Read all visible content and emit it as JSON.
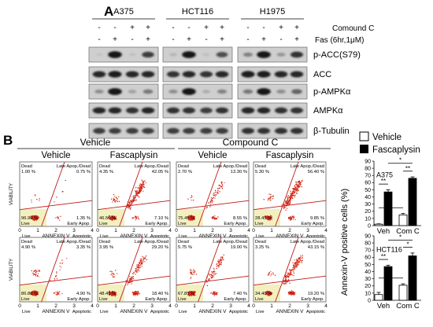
{
  "panelA": {
    "letter": "A",
    "cell_lines": [
      "A375",
      "HCT116",
      "H1975"
    ],
    "treatment_labels": [
      "Comound C",
      "Fas (6hr,1μM)"
    ],
    "compound_c_signs": [
      "-",
      "-",
      "+",
      "+"
    ],
    "fas_signs": [
      "-",
      "+",
      "-",
      "+"
    ],
    "proteins": [
      "p-ACC(S79)",
      "ACC",
      "p-AMPKα",
      "AMPKα",
      "β-Tubulin"
    ],
    "band_intensity": [
      [
        [
          0.08,
          0.95,
          0.1,
          0.75
        ],
        [
          0.15,
          0.95,
          0.1,
          0.65
        ],
        [
          0.4,
          0.95,
          0.3,
          0.8
        ]
      ],
      [
        [
          0.85,
          0.9,
          0.85,
          0.85
        ],
        [
          0.8,
          0.85,
          0.8,
          0.85
        ],
        [
          0.9,
          0.9,
          0.85,
          0.85
        ]
      ],
      [
        [
          0.35,
          0.95,
          0.25,
          0.45
        ],
        [
          0.35,
          0.95,
          0.2,
          0.4
        ],
        [
          0.45,
          0.95,
          0.35,
          0.55
        ]
      ],
      [
        [
          0.85,
          0.85,
          0.8,
          0.85
        ],
        [
          0.8,
          0.8,
          0.75,
          0.8
        ],
        [
          0.85,
          0.85,
          0.8,
          0.8
        ]
      ],
      [
        [
          0.75,
          0.75,
          0.75,
          0.75
        ],
        [
          0.75,
          0.75,
          0.75,
          0.75
        ],
        [
          0.8,
          0.8,
          0.8,
          0.8
        ]
      ]
    ]
  },
  "panelB": {
    "letter": "B",
    "group_titles": [
      "Vehicle",
      "Compound C"
    ],
    "column_titles": [
      "Vehicle",
      "Fascaplysin",
      "Vehicle",
      "Fascaplysin"
    ],
    "quad_labels": {
      "dead": "Dead",
      "late": "Late Apop./Dead",
      "live": "Live",
      "early": "Early Apop."
    },
    "axis": {
      "x_label": "ANNEXIN V",
      "y_label": "VIABILITY",
      "x_ticks": [
        "0",
        "1",
        "2",
        "3",
        "4"
      ],
      "x_sub_left": "Live",
      "x_sub_right": "Apoptotic"
    },
    "plots": [
      {
        "dead": "1.00 %",
        "late": "0.75 %",
        "live": "96.90 %",
        "early": "1.35 %"
      },
      {
        "dead": "4.35 %",
        "late": "42.05 %",
        "live": "46.50 %",
        "early": "7.10 %"
      },
      {
        "dead": "2.70 %",
        "late": "13.30 %",
        "live": "75.45 %",
        "early": "8.55 %"
      },
      {
        "dead": "5.30 %",
        "late": "56.40 %",
        "live": "28.45 %",
        "early": "9.85 %"
      },
      {
        "dead": "4.90 %",
        "late": "3.35 %",
        "live": "86.80 %",
        "early": "4.90 %"
      },
      {
        "dead": "3.95 %",
        "late": "29.20 %",
        "live": "48.45 %",
        "early": "18.40 %"
      },
      {
        "dead": "5.75 %",
        "late": "19.00 %",
        "live": "67.85 %",
        "early": "7.40 %"
      },
      {
        "dead": "3.25 %",
        "late": "43.15 %",
        "live": "34.40 %",
        "early": "19.20 %"
      }
    ]
  },
  "legend": {
    "vehicle": "Vehicle",
    "fascaplysin": "Fascaplysin",
    "vehicle_color": "#ffffff",
    "fascaplysin_color": "#000000"
  },
  "chart_data": [
    {
      "type": "bar",
      "title": "A375",
      "ylabel": "Annexin-V positive cells (%)",
      "ylim": [
        0,
        90
      ],
      "yticks": [
        "0",
        "10",
        "20",
        "30",
        "40",
        "50",
        "60",
        "70",
        "80",
        "90"
      ],
      "categories": [
        "Veh",
        "Com C"
      ],
      "series": [
        {
          "name": "Vehicle",
          "values": [
            2,
            15
          ],
          "errors": [
            0.5,
            2
          ]
        },
        {
          "name": "Fascaplysin",
          "values": [
            47,
            66
          ],
          "errors": [
            3,
            2
          ]
        }
      ],
      "sig_labels": [
        "**",
        "*",
        "**",
        "*"
      ]
    },
    {
      "type": "bar",
      "title": "HCT116",
      "ylabel": "Annexin-V positive cells (%)",
      "ylim": [
        0,
        90
      ],
      "yticks": [
        "0",
        "10",
        "20",
        "30",
        "40",
        "50",
        "60",
        "70",
        "80",
        "90"
      ],
      "categories": [
        "Veh",
        "Com C"
      ],
      "series": [
        {
          "name": "Vehicle",
          "values": [
            8,
            21
          ],
          "errors": [
            3,
            2
          ]
        },
        {
          "name": "Fascaplysin",
          "values": [
            47,
            62
          ],
          "errors": [
            2,
            4
          ]
        }
      ],
      "sig_labels": [
        "**",
        "*",
        "*",
        "*"
      ]
    }
  ]
}
